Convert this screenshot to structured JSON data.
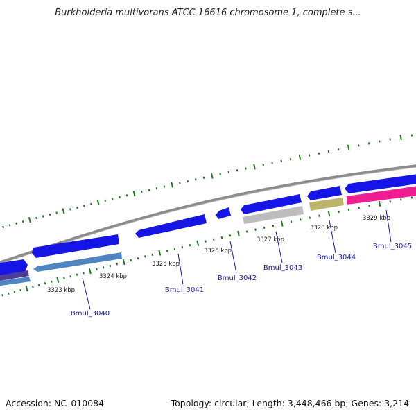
{
  "title": "Burkholderia multivorans ATCC 16616 chromosome 1, complete s...",
  "footer": {
    "accession": "Accession: NC_010084",
    "summary": "Topology: circular; Length: 3,448,466 bp; Genes: 3,214"
  },
  "scale_labels": [
    "3323 kbp",
    "3324 kbp",
    "3325 kbp",
    "3326 kbp",
    "3327 kbp",
    "3328 kbp",
    "3329 kbp"
  ],
  "gene_labels": [
    "Bmul_3040",
    "Bmul_3041",
    "Bmul_3042",
    "Bmul_3043",
    "Bmul_3044",
    "Bmul_3045"
  ],
  "colors": {
    "backbone": "#8c8c8c",
    "tick": "#1e7a1e",
    "gene_blue": "#1515e6",
    "gene_steel": "#4f86c2",
    "gene_purple": "#4d3d96",
    "gene_gray": "#bdbdbd",
    "gene_olive": "#bdb36a",
    "gene_pink": "#ef1f92",
    "label": "#1a1aa6"
  }
}
